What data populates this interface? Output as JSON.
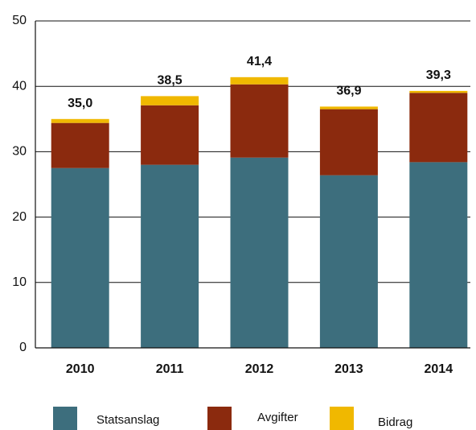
{
  "chart_data": {
    "type": "stacked_bar",
    "categories": [
      "2010",
      "2011",
      "2012",
      "2013",
      "2014"
    ],
    "series": [
      {
        "name": "Statsanslag",
        "color": "#3d6e7d",
        "values": [
          27.5,
          28.0,
          29.1,
          26.4,
          28.4
        ]
      },
      {
        "name": "Avgifter",
        "color": "#8b2a0e",
        "values": [
          6.9,
          9.1,
          11.2,
          10.1,
          10.6
        ]
      },
      {
        "name": "Bidrag",
        "color": "#f0b800",
        "values": [
          0.6,
          1.4,
          1.1,
          0.4,
          0.3
        ]
      }
    ],
    "totals": [
      35.0,
      38.5,
      41.4,
      36.9,
      39.3
    ],
    "total_labels": [
      "35,0",
      "38,5",
      "41,4",
      "36,9",
      "39,3"
    ],
    "ylim": [
      0,
      50
    ],
    "yticks": [
      0,
      10,
      20,
      30,
      40,
      50
    ],
    "grid": true
  }
}
